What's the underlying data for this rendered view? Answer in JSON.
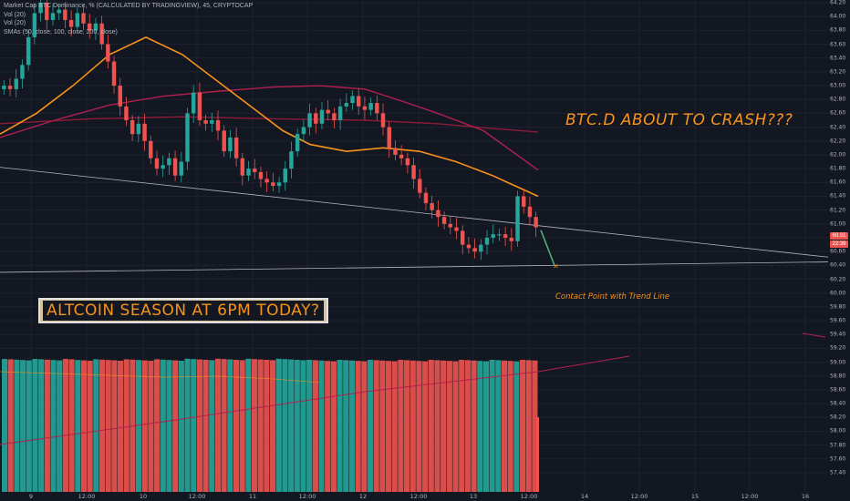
{
  "legend": {
    "title": "Market Cap BTC Dominance, % (CALCULATED BY TRADINGVIEW), 45, CRYPTOCAP",
    "vol1": "Vol (20)",
    "vol2": "Vol (20)",
    "smas": "SMAs (50, close, 100, close, 200, close)"
  },
  "annotations": {
    "crash": "BTC.D ABOUT TO CRASH???",
    "altcoin": "ALTCOIN SEASON AT 6PM TODAY?",
    "contact": "Contact Point with Trend Line"
  },
  "price_badges": {
    "last": "60.91",
    "timer": "22:39"
  },
  "colors": {
    "up": "#26a69a",
    "down": "#ef5350",
    "sma50": "#f7931a",
    "sma100": "#b2204d",
    "sma200": "#8e1a3a",
    "bg": "#131722"
  },
  "chart_data": {
    "type": "candlestick",
    "title": "Market Cap BTC Dominance, % (CALCULATED BY TRADINGVIEW), 45, CRYPTOCAP",
    "y_ticks": [
      "64.20",
      "64.00",
      "63.80",
      "63.60",
      "63.40",
      "63.20",
      "63.00",
      "62.80",
      "62.60",
      "62.40",
      "62.20",
      "62.00",
      "61.80",
      "61.60",
      "61.40",
      "61.20",
      "61.00",
      "60.80",
      "60.60",
      "60.40",
      "60.20",
      "60.00",
      "59.80",
      "59.60",
      "59.40",
      "59.20",
      "59.00",
      "58.80",
      "58.60",
      "58.40",
      "58.20",
      "58.00",
      "57.80",
      "57.60",
      "57.40"
    ],
    "x_ticks": [
      "9",
      "12:00",
      "10",
      "12:00",
      "11",
      "12:00",
      "12",
      "12:00",
      "13",
      "12:00",
      "14",
      "12:00",
      "15",
      "12:00",
      "16"
    ],
    "ylim": [
      57.32,
      64.28
    ],
    "close": [
      63.0,
      62.95,
      63.1,
      63.3,
      63.7,
      64.05,
      64.2,
      63.95,
      64.05,
      64.1,
      63.95,
      63.85,
      64.05,
      63.9,
      63.8,
      63.9,
      63.6,
      63.35,
      63.0,
      62.7,
      62.5,
      62.3,
      62.45,
      62.2,
      61.95,
      61.8,
      61.85,
      61.95,
      61.7,
      61.9,
      62.6,
      62.9,
      62.5,
      62.45,
      62.5,
      62.35,
      62.05,
      62.25,
      61.95,
      61.7,
      61.8,
      61.75,
      61.65,
      61.6,
      61.55,
      61.6,
      61.8,
      62.05,
      62.3,
      62.4,
      62.6,
      62.45,
      62.65,
      62.6,
      62.5,
      62.7,
      62.75,
      62.85,
      62.7,
      62.65,
      62.75,
      62.6,
      62.4,
      62.1,
      62.0,
      61.95,
      61.85,
      61.65,
      61.45,
      61.3,
      61.2,
      61.1,
      61.0,
      60.95,
      60.9,
      60.7,
      60.65,
      60.6,
      60.7,
      60.8,
      60.85,
      60.85,
      60.8,
      60.75,
      61.4,
      61.25,
      61.1,
      60.95
    ],
    "open": [
      62.95,
      63.0,
      62.95,
      63.1,
      63.3,
      63.7,
      64.05,
      64.2,
      63.95,
      64.05,
      64.1,
      63.95,
      63.85,
      64.05,
      63.9,
      63.8,
      63.9,
      63.6,
      63.35,
      63.0,
      62.7,
      62.5,
      62.3,
      62.45,
      62.2,
      61.95,
      61.8,
      61.85,
      61.95,
      61.7,
      61.9,
      62.6,
      62.9,
      62.5,
      62.45,
      62.5,
      62.35,
      62.05,
      62.25,
      61.95,
      61.7,
      61.8,
      61.75,
      61.65,
      61.6,
      61.55,
      61.6,
      61.8,
      62.05,
      62.3,
      62.4,
      62.6,
      62.45,
      62.65,
      62.6,
      62.5,
      62.7,
      62.75,
      62.85,
      62.7,
      62.65,
      62.75,
      62.6,
      62.4,
      62.1,
      62.0,
      61.95,
      61.85,
      61.65,
      61.45,
      61.3,
      61.2,
      61.1,
      61.0,
      60.95,
      60.9,
      60.7,
      60.65,
      60.6,
      60.7,
      60.8,
      60.85,
      60.85,
      60.8,
      60.75,
      61.4,
      61.25,
      61.1
    ],
    "sma50": [
      [
        0,
        62.3
      ],
      [
        40,
        62.6
      ],
      [
        80,
        63.0
      ],
      [
        120,
        63.45
      ],
      [
        160,
        63.7
      ],
      [
        200,
        63.45
      ],
      [
        240,
        63.05
      ],
      [
        280,
        62.65
      ],
      [
        310,
        62.35
      ],
      [
        340,
        62.15
      ],
      [
        380,
        62.05
      ],
      [
        420,
        62.1
      ],
      [
        460,
        62.05
      ],
      [
        500,
        61.9
      ],
      [
        540,
        61.7
      ],
      [
        565,
        61.55
      ],
      [
        590,
        61.4
      ]
    ],
    "sma100": [
      [
        0,
        62.25
      ],
      [
        60,
        62.5
      ],
      [
        120,
        62.72
      ],
      [
        180,
        62.85
      ],
      [
        240,
        62.92
      ],
      [
        300,
        62.98
      ],
      [
        350,
        63.0
      ],
      [
        400,
        62.95
      ],
      [
        440,
        62.78
      ],
      [
        480,
        62.6
      ],
      [
        530,
        62.35
      ],
      [
        590,
        61.78
      ]
    ],
    "sma200": [
      [
        0,
        62.45
      ],
      [
        100,
        62.52
      ],
      [
        200,
        62.55
      ],
      [
        300,
        62.52
      ],
      [
        400,
        62.5
      ],
      [
        480,
        62.45
      ],
      [
        540,
        62.38
      ],
      [
        590,
        62.33
      ]
    ],
    "trendline": [
      [
        0,
        61.82
      ],
      [
        908,
        60.52
      ]
    ],
    "support": [
      [
        0,
        60.3
      ],
      [
        908,
        60.45
      ]
    ],
    "projection": [
      [
        593,
        60.91
      ],
      [
        608,
        60.4
      ]
    ],
    "volume_panel": {
      "top_price": 59.05,
      "bottom_price": 57.4
    }
  }
}
